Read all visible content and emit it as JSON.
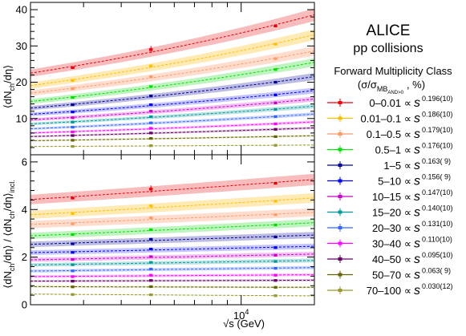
{
  "legend": {
    "experiment": "ALICE",
    "system": "pp collisions",
    "class_title": "Forward Multiplicity Class",
    "class_unit_prefix": "(σ/σ",
    "class_unit_sub": "MB",
    "class_unit_subsub": "AND>0",
    "class_unit_suffix": ", %)",
    "prop_symbol": "∝ s"
  },
  "chart_data": {
    "type": "scatter",
    "xlabel": "√s (GeV)",
    "x_scale": "log",
    "x_ticks": [
      {
        "value": 10000,
        "label": "10",
        "exp": "4"
      }
    ],
    "x": [
      2760,
      5020,
      13000
    ],
    "panels": [
      {
        "name": "absolute",
        "ylabel_main": "⟨dN",
        "ylabel": "⟨dN_ch/dη⟩",
        "ylim": [
          0,
          42
        ],
        "yticks": [
          10,
          20,
          30,
          40
        ],
        "ytick_labels": [
          "10",
          "20",
          "30",
          "40"
        ]
      },
      {
        "name": "ratio",
        "ylabel": "⟨dN_ch/dη⟩ / ⟨dN_ch/dη⟩_incl.",
        "ylabel_sub_incl": "incl.",
        "ylim": [
          0,
          6.3
        ],
        "yticks": [
          0,
          2,
          4,
          6
        ],
        "ytick_labels": [
          "0",
          "2",
          "4",
          "6"
        ]
      }
    ],
    "series": [
      {
        "name": "0–0.01",
        "exponent": "0.196(10)",
        "color": "#e8000b",
        "band": "#f6a6a6",
        "abs": [
          24.0,
          29.0,
          35.5
        ],
        "ratio": [
          4.48,
          4.86,
          5.1
        ]
      },
      {
        "name": "0.01–0.1",
        "exponent": "0.186(10)",
        "color": "#ffbf00",
        "band": "#ffe39a",
        "abs": [
          20.5,
          24.5,
          30.5
        ],
        "ratio": [
          3.83,
          4.15,
          4.35
        ]
      },
      {
        "name": "0.1–0.5",
        "exponent": "0.179(10)",
        "color": "#ff9966",
        "band": "#ffd2bd",
        "abs": [
          18.2,
          21.5,
          26.5
        ],
        "ratio": [
          3.4,
          3.65,
          3.78
        ]
      },
      {
        "name": "0.5–1",
        "exponent": "0.176(10)",
        "color": "#00e000",
        "band": "#a8f0a8",
        "abs": [
          15.8,
          18.8,
          23.5
        ],
        "ratio": [
          2.95,
          3.15,
          3.35
        ]
      },
      {
        "name": "1–5",
        "exponent": "0.163( 9)",
        "color": "#000099",
        "band": "#a6a6d8",
        "abs": [
          13.8,
          16.2,
          20.0
        ],
        "ratio": [
          2.56,
          2.75,
          2.85
        ]
      },
      {
        "name": "5–10",
        "exponent": "0.156( 9)",
        "color": "#0000ff",
        "band": "#b0b0ff",
        "abs": [
          11.8,
          13.8,
          16.5
        ],
        "ratio": [
          2.2,
          2.34,
          2.4
        ]
      },
      {
        "name": "10–15",
        "exponent": "0.147(10)",
        "color": "#cc00cc",
        "band": "#eeaaee",
        "abs": [
          10.2,
          12.0,
          14.3
        ],
        "ratio": [
          1.9,
          2.02,
          2.08
        ]
      },
      {
        "name": "15–20",
        "exponent": "0.140(10)",
        "color": "#009999",
        "band": "#a6dada",
        "abs": [
          9.0,
          10.5,
          12.5
        ],
        "ratio": [
          1.68,
          1.78,
          1.82
        ]
      },
      {
        "name": "20–30",
        "exponent": "0.131(10)",
        "color": "#3366ff",
        "band": "#b8c8ff",
        "abs": [
          7.6,
          8.8,
          10.5
        ],
        "ratio": [
          1.42,
          1.5,
          1.53
        ]
      },
      {
        "name": "30–40",
        "exponent": "0.110(10)",
        "color": "#ff00ff",
        "band": "#ffaaff",
        "abs": [
          6.3,
          7.3,
          8.5
        ],
        "ratio": [
          1.18,
          1.24,
          1.24
        ]
      },
      {
        "name": "40–50",
        "exponent": "0.095(10)",
        "color": "#660066",
        "band": "#c8a6c8",
        "abs": [
          5.3,
          6.0,
          7.0
        ],
        "ratio": [
          0.99,
          1.02,
          1.02
        ]
      },
      {
        "name": "50–70",
        "exponent": "0.063( 9)",
        "color": "#666600",
        "band": "#d0d0a6",
        "abs": [
          4.0,
          4.5,
          5.0
        ],
        "ratio": [
          0.75,
          0.76,
          0.73
        ]
      },
      {
        "name": "70–100",
        "exponent": "0.030(12)",
        "color": "#999933",
        "band": "#e0e0b8",
        "abs": [
          2.3,
          2.5,
          2.6
        ],
        "ratio": [
          0.43,
          0.42,
          0.38
        ]
      }
    ]
  }
}
